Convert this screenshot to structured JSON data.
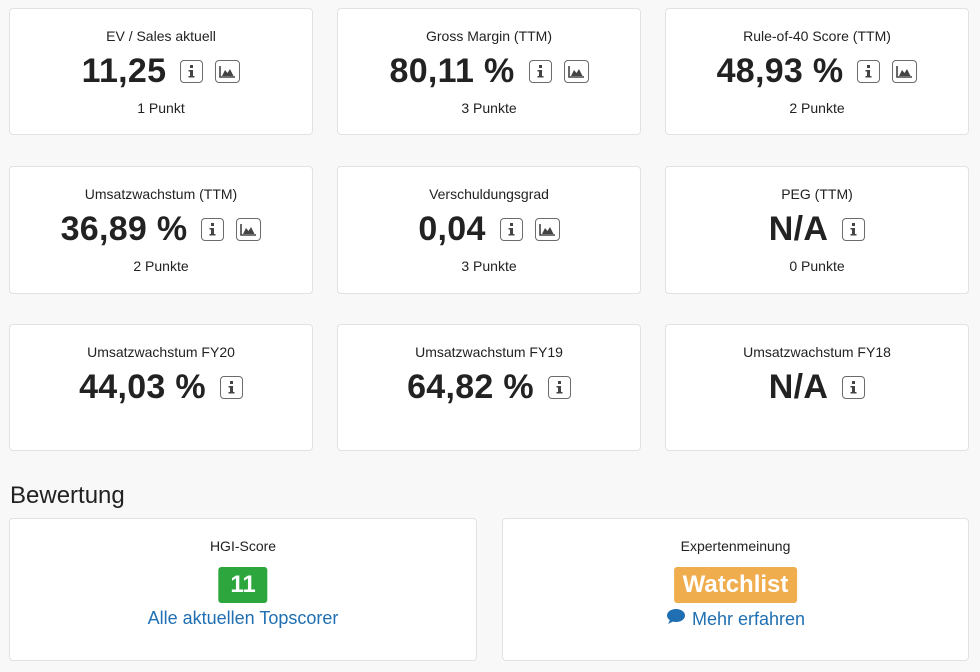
{
  "metrics": [
    {
      "title": "EV / Sales aktuell",
      "value": "11,25",
      "points": "1 Punkt",
      "chart_icon": true
    },
    {
      "title": "Gross Margin (TTM)",
      "value": "80,11 %",
      "points": "3 Punkte",
      "chart_icon": true
    },
    {
      "title": "Rule-of-40 Score (TTM)",
      "value": "48,93 %",
      "points": "2 Punkte",
      "chart_icon": true
    },
    {
      "title": "Umsatzwachstum (TTM)",
      "value": "36,89 %",
      "points": "2 Punkte",
      "chart_icon": true
    },
    {
      "title": "Verschuldungsgrad",
      "value": "0,04",
      "points": "3 Punkte",
      "chart_icon": true
    },
    {
      "title": "PEG (TTM)",
      "value": "N/A",
      "points": "0 Punkte",
      "chart_icon": false
    },
    {
      "title": "Umsatzwachstum FY20",
      "value": "44,03 %",
      "points": "",
      "chart_icon": false
    },
    {
      "title": "Umsatzwachstum FY19",
      "value": "64,82 %",
      "points": "",
      "chart_icon": false
    },
    {
      "title": "Umsatzwachstum FY18",
      "value": "N/A",
      "points": "",
      "chart_icon": false
    }
  ],
  "icons": {
    "info": "info-icon",
    "chart": "area-chart-icon",
    "comment": "speech-bubble-icon"
  },
  "bewertung": {
    "section_title": "Bewertung",
    "hgi": {
      "title": "HGI-Score",
      "score": "11",
      "link": "Alle aktuellen Topscorer",
      "badge_color": "#2da63e"
    },
    "expert": {
      "title": "Expertenmeinung",
      "badge": "Watchlist",
      "link": "Mehr erfahren",
      "badge_color": "#f0ad4e"
    }
  },
  "colors": {
    "link": "#1f6fb2",
    "background": "#f8f8f8"
  }
}
